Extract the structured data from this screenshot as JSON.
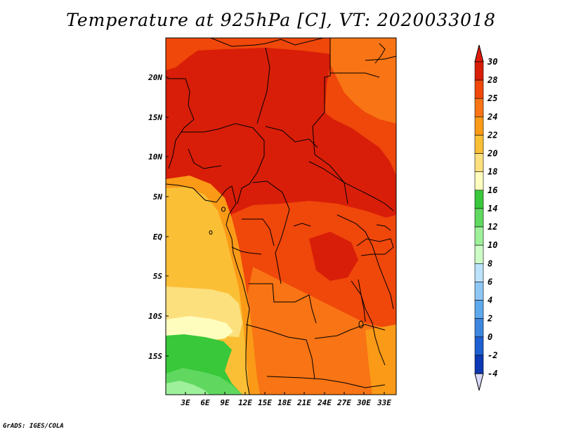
{
  "title": "Temperature at 925hPa [C], VT: 2020033018",
  "credit": "GrADS: IGES/COLA",
  "map": {
    "lat_labels": [
      "20N",
      "15N",
      "10N",
      "5N",
      "EQ",
      "5S",
      "10S",
      "15S"
    ],
    "lon_labels": [
      "3E",
      "6E",
      "9E",
      "12E",
      "15E",
      "18E",
      "21E",
      "24E",
      "27E",
      "30E",
      "33E"
    ]
  },
  "colorbar": {
    "labels": [
      "30",
      "28",
      "25",
      "24",
      "22",
      "20",
      "18",
      "16",
      "14",
      "12",
      "10",
      "8",
      "6",
      "4",
      "2",
      "0",
      "-2",
      "-4"
    ],
    "colors": [
      "#d81e08",
      "#f0470a",
      "#f87414",
      "#fa9a17",
      "#fbbf36",
      "#fde07e",
      "#fffdbe",
      "#38c83a",
      "#60d860",
      "#9ef09a",
      "#cdfbc6",
      "#bde3fb",
      "#8ec7f4",
      "#5ea9ed",
      "#3c86e0",
      "#1e5fd1",
      "#0c38b3",
      "#090f6c"
    ],
    "top_color": "#e01b0c",
    "bottom_color": "#d8d8f8"
  }
}
